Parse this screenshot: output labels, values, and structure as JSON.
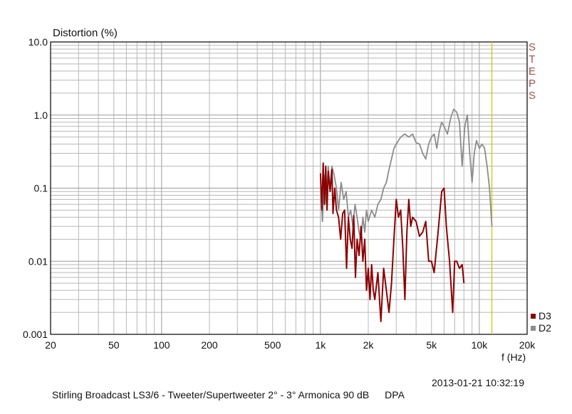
{
  "chart_data": {
    "type": "line",
    "title": "",
    "ylabel": "Distortion (%)",
    "xlabel": "f (Hz)",
    "x_scale": "log",
    "y_scale": "log",
    "xlim": [
      20,
      20000
    ],
    "ylim": [
      0.001,
      10
    ],
    "grid": true,
    "legend_position": "bottom-right",
    "x_ticks": [
      {
        "v": 20,
        "label": "20"
      },
      {
        "v": 50,
        "label": "50"
      },
      {
        "v": 100,
        "label": "100"
      },
      {
        "v": 200,
        "label": "200"
      },
      {
        "v": 500,
        "label": "500"
      },
      {
        "v": 1000,
        "label": "1k"
      },
      {
        "v": 2000,
        "label": "2k"
      },
      {
        "v": 5000,
        "label": "5k"
      },
      {
        "v": 10000,
        "label": "10k"
      },
      {
        "v": 20000,
        "label": "20k"
      }
    ],
    "y_ticks": [
      {
        "v": 10,
        "label": "10.0"
      },
      {
        "v": 1,
        "label": "1.0"
      },
      {
        "v": 0.1,
        "label": "0.1"
      },
      {
        "v": 0.01,
        "label": "0.01"
      },
      {
        "v": 0.001,
        "label": "0.001"
      }
    ],
    "marker_frequency": 12000,
    "marker_color": "#c8c800",
    "series": [
      {
        "name": "D3",
        "color": "#8b0000",
        "x": [
          1000,
          1020,
          1040,
          1060,
          1080,
          1100,
          1120,
          1150,
          1180,
          1200,
          1230,
          1260,
          1300,
          1340,
          1380,
          1420,
          1460,
          1500,
          1540,
          1580,
          1620,
          1660,
          1700,
          1750,
          1800,
          1850,
          1900,
          1950,
          2000,
          2050,
          2100,
          2150,
          2200,
          2300,
          2400,
          2500,
          2600,
          2700,
          2800,
          2900,
          3000,
          3100,
          3200,
          3300,
          3400,
          3500,
          3600,
          3700,
          3800,
          4000,
          4200,
          4400,
          4600,
          4800,
          5000,
          5200,
          5500,
          5800,
          6000,
          6200,
          6500,
          6800,
          7000,
          7200,
          7500,
          7800,
          8000
        ],
        "y": [
          0.16,
          0.05,
          0.22,
          0.06,
          0.2,
          0.05,
          0.17,
          0.09,
          0.18,
          0.045,
          0.1,
          0.05,
          0.04,
          0.02,
          0.045,
          0.05,
          0.008,
          0.04,
          0.02,
          0.015,
          0.042,
          0.006,
          0.02,
          0.012,
          0.03,
          0.01,
          0.02,
          0.004,
          0.008,
          0.003,
          0.009,
          0.004,
          0.003,
          0.007,
          0.0015,
          0.008,
          0.004,
          0.002,
          0.005,
          0.02,
          0.07,
          0.04,
          0.05,
          0.015,
          0.003,
          0.025,
          0.07,
          0.03,
          0.04,
          0.035,
          0.022,
          0.025,
          0.035,
          0.01,
          0.01,
          0.007,
          0.025,
          0.09,
          0.1,
          0.03,
          0.01,
          0.002,
          0.01,
          0.01,
          0.008,
          0.009,
          0.005
        ]
      },
      {
        "name": "D2",
        "color": "#8c8c8c",
        "x": [
          1000,
          1030,
          1060,
          1090,
          1120,
          1150,
          1180,
          1220,
          1260,
          1300,
          1350,
          1400,
          1450,
          1500,
          1550,
          1600,
          1650,
          1700,
          1750,
          1800,
          1850,
          1900,
          1950,
          2000,
          2100,
          2200,
          2300,
          2400,
          2500,
          2600,
          2700,
          2800,
          2900,
          3000,
          3200,
          3400,
          3600,
          3800,
          4000,
          4200,
          4400,
          4600,
          4800,
          5000,
          5200,
          5400,
          5600,
          5800,
          6000,
          6300,
          6600,
          6900,
          7200,
          7500,
          7800,
          8100,
          8400,
          8700,
          9000,
          9300,
          9600,
          10000,
          10400,
          10800,
          11200,
          11600,
          12000
        ],
        "y": [
          0.14,
          0.035,
          0.15,
          0.06,
          0.2,
          0.1,
          0.2,
          0.15,
          0.1,
          0.05,
          0.12,
          0.07,
          0.09,
          0.04,
          0.05,
          0.03,
          0.06,
          0.04,
          0.025,
          0.02,
          0.04,
          0.025,
          0.05,
          0.035,
          0.05,
          0.04,
          0.06,
          0.07,
          0.1,
          0.12,
          0.18,
          0.25,
          0.35,
          0.4,
          0.5,
          0.55,
          0.5,
          0.55,
          0.42,
          0.4,
          0.3,
          0.25,
          0.4,
          0.5,
          0.55,
          0.35,
          0.6,
          0.8,
          0.7,
          0.55,
          0.9,
          1.2,
          1.1,
          0.8,
          0.2,
          0.7,
          1.0,
          0.3,
          0.12,
          0.3,
          0.45,
          0.35,
          0.4,
          0.35,
          0.2,
          0.1,
          0.03
        ]
      }
    ]
  },
  "labels": {
    "steps": [
      "S",
      "T",
      "E",
      "P",
      "S"
    ],
    "timestamp": "2013-01-21 10:32:19",
    "footer_title": "Stirling Broadcast LS3/6 - Tweeter/Supertweeter 2° - 3° Armonica 90 dB",
    "footer_source": "DPA"
  }
}
